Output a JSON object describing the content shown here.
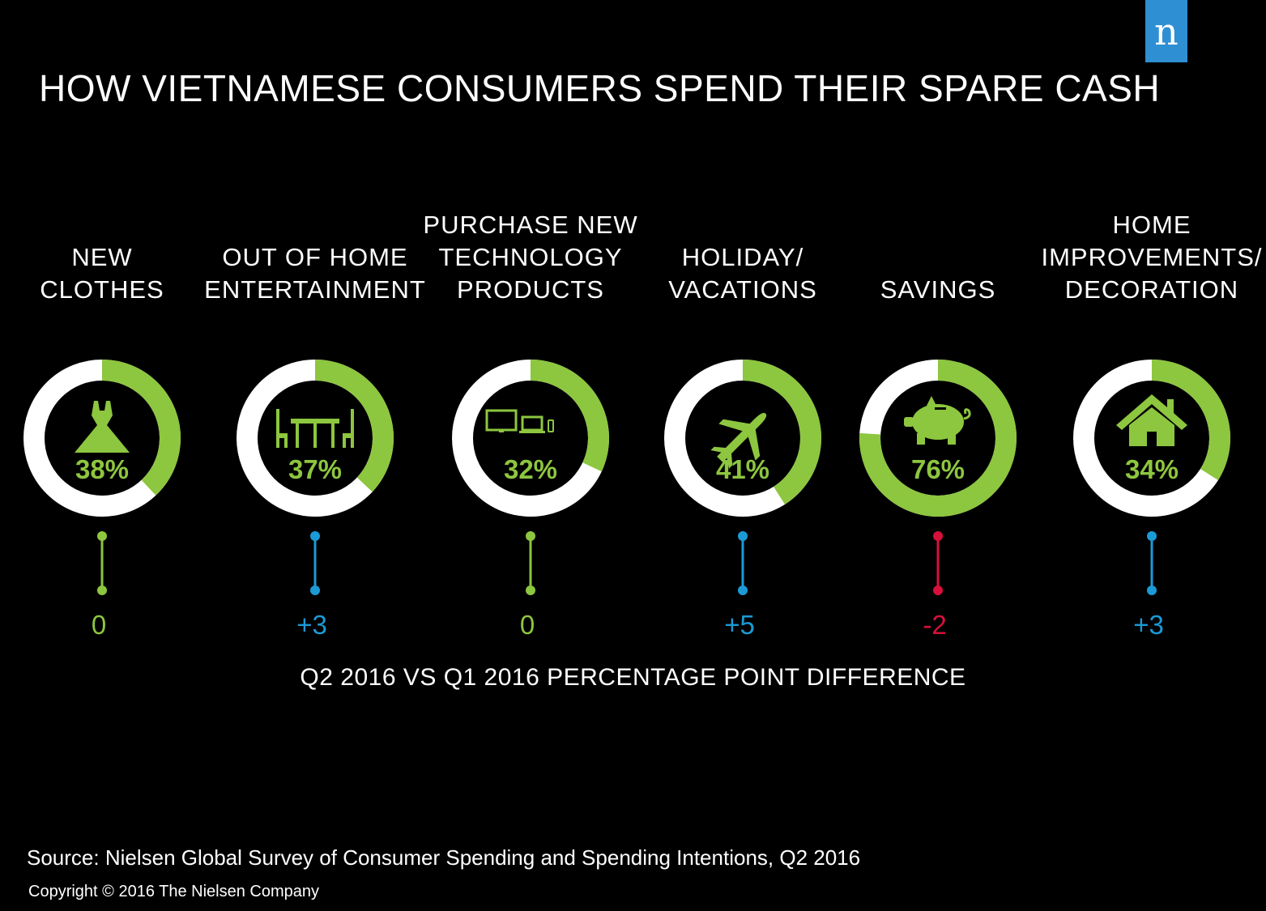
{
  "brand": {
    "logo_letter": "n",
    "logo_color": "#2e8fd3"
  },
  "title": "HOW VIETNAMESE CONSUMERS SPEND THEIR SPARE CASH",
  "colors": {
    "ring_fill": "#8dc63f",
    "ring_track": "#ffffff",
    "delta_zero": "#8dc63f",
    "delta_up": "#1b9ad6",
    "delta_down": "#d6103b"
  },
  "chart_data": {
    "type": "donut",
    "categories": [
      {
        "label_lines": [
          "NEW",
          "CLOTHES"
        ],
        "value": 38,
        "value_label": "38%",
        "change": 0,
        "change_label": "0",
        "icon": "dress-icon"
      },
      {
        "label_lines": [
          "OUT OF HOME",
          "ENTERTAINMENT"
        ],
        "value": 37,
        "value_label": "37%",
        "change": 3,
        "change_label": "+3",
        "icon": "dining-table-icon"
      },
      {
        "label_lines": [
          "PURCHASE NEW",
          "TECHNOLOGY",
          "PRODUCTS"
        ],
        "value": 32,
        "value_label": "32%",
        "change": 0,
        "change_label": "0",
        "icon": "devices-icon"
      },
      {
        "label_lines": [
          "HOLIDAY/",
          "VACATIONS"
        ],
        "value": 41,
        "value_label": "41%",
        "change": 5,
        "change_label": "+5",
        "icon": "airplane-icon"
      },
      {
        "label_lines": [
          "SAVINGS"
        ],
        "value": 76,
        "value_label": "76%",
        "change": -2,
        "change_label": "-2",
        "icon": "piggy-bank-icon"
      },
      {
        "label_lines": [
          "HOME",
          "IMPROVEMENTS/",
          "DECORATION"
        ],
        "value": 34,
        "value_label": "34%",
        "change": 3,
        "change_label": "+3",
        "icon": "house-icon"
      }
    ],
    "change_note": "Q2 2016 VS Q1 2016 PERCENTAGE POINT DIFFERENCE"
  },
  "footer": {
    "source": "Source: Nielsen Global Survey of Consumer Spending and Spending Intentions, Q2 2016",
    "copyright": "Copyright © 2016 The Nielsen Company"
  }
}
